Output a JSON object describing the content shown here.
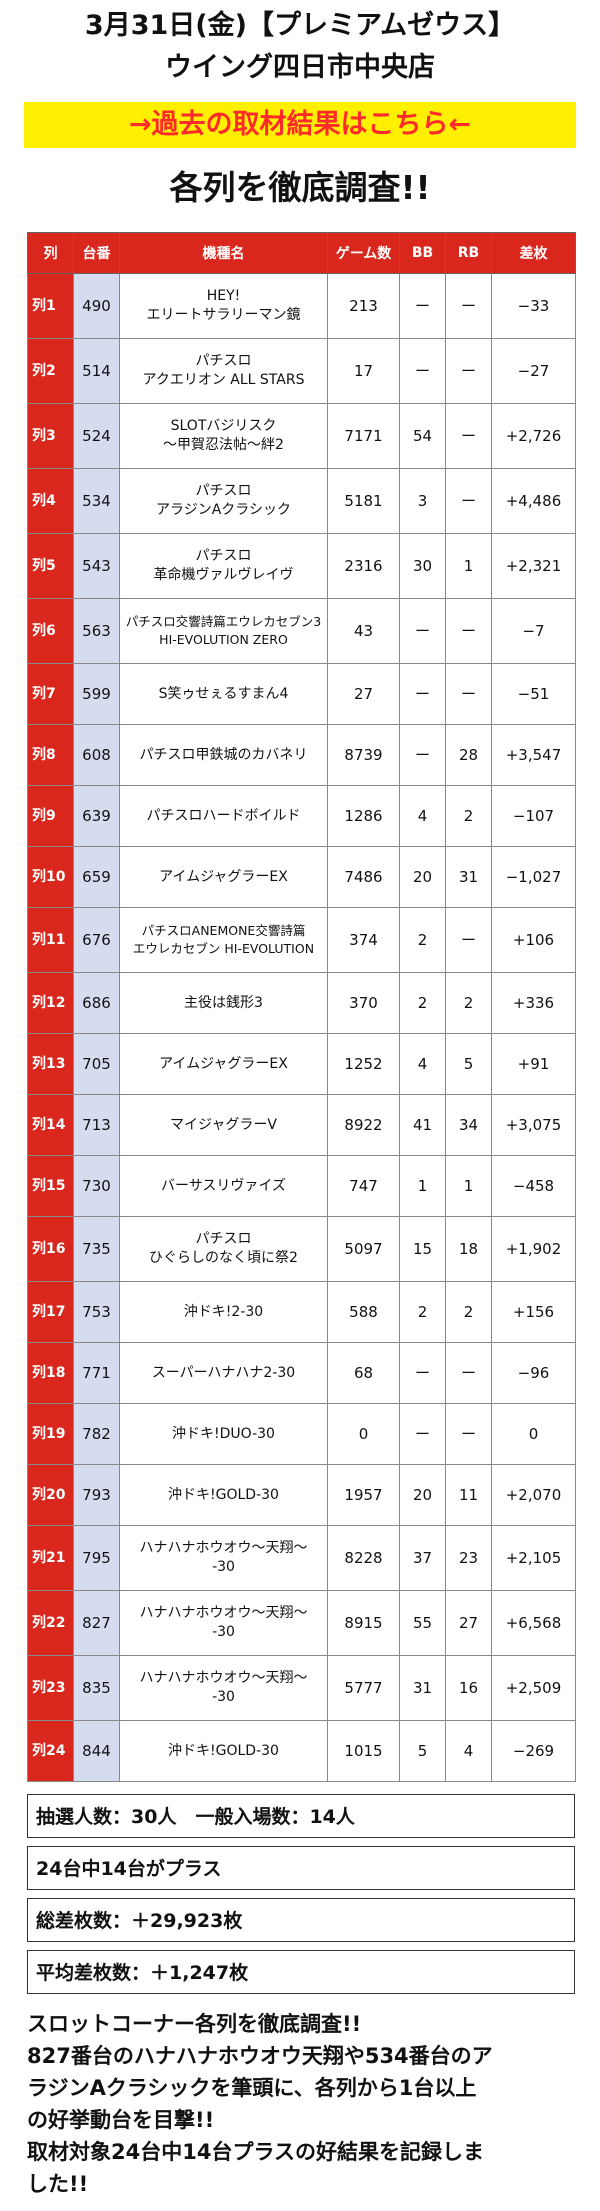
{
  "header": {
    "date_line": "3月31日(金)【プレミアムゼウス】",
    "store": "ウイング四日市中央店",
    "banner_link": "→過去の取材結果はこちら←",
    "heading": "各列を徹底調査!!"
  },
  "table": {
    "headers": [
      "列",
      "台番",
      "機種名",
      "ゲーム数",
      "BB",
      "RB",
      "差枚"
    ],
    "rows": [
      {
        "retsu": "列1",
        "num": "490",
        "name1": "HEY!",
        "name2": "エリートサラリーマン鏡",
        "games": "213",
        "bb": "ー",
        "rb": "ー",
        "diff": "−33"
      },
      {
        "retsu": "列2",
        "num": "514",
        "name1": "パチスロ",
        "name2": "アクエリオン ALL STARS",
        "games": "17",
        "bb": "ー",
        "rb": "ー",
        "diff": "−27"
      },
      {
        "retsu": "列3",
        "num": "524",
        "name1": "SLOTバジリスク",
        "name2": "〜甲賀忍法帖〜絆2",
        "games": "7171",
        "bb": "54",
        "rb": "ー",
        "diff": "+2,726"
      },
      {
        "retsu": "列4",
        "num": "534",
        "name1": "パチスロ",
        "name2": "アラジンAクラシック",
        "games": "5181",
        "bb": "3",
        "rb": "ー",
        "diff": "+4,486"
      },
      {
        "retsu": "列5",
        "num": "543",
        "name1": "パチスロ",
        "name2": "革命機ヴァルヴレイヴ",
        "games": "2316",
        "bb": "30",
        "rb": "1",
        "diff": "+2,321"
      },
      {
        "retsu": "列6",
        "num": "563",
        "name1": "パチスロ交響詩篇エウレカセブン3",
        "name2": "HI-EVOLUTION ZERO",
        "games": "43",
        "bb": "ー",
        "rb": "ー",
        "diff": "−7"
      },
      {
        "retsu": "列7",
        "num": "599",
        "name1": "S笑ゥせぇるすまん4",
        "name2": "",
        "games": "27",
        "bb": "ー",
        "rb": "ー",
        "diff": "−51"
      },
      {
        "retsu": "列8",
        "num": "608",
        "name1": "パチスロ甲鉄城のカバネリ",
        "name2": "",
        "games": "8739",
        "bb": "ー",
        "rb": "28",
        "diff": "+3,547"
      },
      {
        "retsu": "列9",
        "num": "639",
        "name1": "パチスロハードボイルド",
        "name2": "",
        "games": "1286",
        "bb": "4",
        "rb": "2",
        "diff": "−107"
      },
      {
        "retsu": "列10",
        "num": "659",
        "name1": "アイムジャグラーEX",
        "name2": "",
        "games": "7486",
        "bb": "20",
        "rb": "31",
        "diff": "−1,027"
      },
      {
        "retsu": "列11",
        "num": "676",
        "name1": "パチスロANEMONE交響詩篇",
        "name2": "エウレカセブン HI-EVOLUTION",
        "games": "374",
        "bb": "2",
        "rb": "ー",
        "diff": "+106"
      },
      {
        "retsu": "列12",
        "num": "686",
        "name1": "主役は銭形3",
        "name2": "",
        "games": "370",
        "bb": "2",
        "rb": "2",
        "diff": "+336"
      },
      {
        "retsu": "列13",
        "num": "705",
        "name1": "アイムジャグラーEX",
        "name2": "",
        "games": "1252",
        "bb": "4",
        "rb": "5",
        "diff": "+91"
      },
      {
        "retsu": "列14",
        "num": "713",
        "name1": "マイジャグラーV",
        "name2": "",
        "games": "8922",
        "bb": "41",
        "rb": "34",
        "diff": "+3,075"
      },
      {
        "retsu": "列15",
        "num": "730",
        "name1": "バーサスリヴァイズ",
        "name2": "",
        "games": "747",
        "bb": "1",
        "rb": "1",
        "diff": "−458"
      },
      {
        "retsu": "列16",
        "num": "735",
        "name1": "パチスロ",
        "name2": "ひぐらしのなく頃に祭2",
        "games": "5097",
        "bb": "15",
        "rb": "18",
        "diff": "+1,902"
      },
      {
        "retsu": "列17",
        "num": "753",
        "name1": "沖ドキ!2-30",
        "name2": "",
        "games": "588",
        "bb": "2",
        "rb": "2",
        "diff": "+156"
      },
      {
        "retsu": "列18",
        "num": "771",
        "name1": "スーパーハナハナ2-30",
        "name2": "",
        "games": "68",
        "bb": "ー",
        "rb": "ー",
        "diff": "−96"
      },
      {
        "retsu": "列19",
        "num": "782",
        "name1": "沖ドキ!DUO-30",
        "name2": "",
        "games": "0",
        "bb": "ー",
        "rb": "ー",
        "diff": "0"
      },
      {
        "retsu": "列20",
        "num": "793",
        "name1": "沖ドキ!GOLD-30",
        "name2": "",
        "games": "1957",
        "bb": "20",
        "rb": "11",
        "diff": "+2,070"
      },
      {
        "retsu": "列21",
        "num": "795",
        "name1": "ハナハナホウオウ〜天翔〜",
        "name2": "-30",
        "games": "8228",
        "bb": "37",
        "rb": "23",
        "diff": "+2,105"
      },
      {
        "retsu": "列22",
        "num": "827",
        "name1": "ハナハナホウオウ〜天翔〜",
        "name2": "-30",
        "games": "8915",
        "bb": "55",
        "rb": "27",
        "diff": "+6,568"
      },
      {
        "retsu": "列23",
        "num": "835",
        "name1": "ハナハナホウオウ〜天翔〜",
        "name2": "-30",
        "games": "5777",
        "bb": "31",
        "rb": "16",
        "diff": "+2,509"
      },
      {
        "retsu": "列24",
        "num": "844",
        "name1": "沖ドキ!GOLD-30",
        "name2": "",
        "games": "1015",
        "bb": "5",
        "rb": "4",
        "diff": "−269"
      }
    ]
  },
  "summary": {
    "line1": "抽選人数：30人　一般入場数：14人",
    "line2": "24台中14台がプラス",
    "line3": "総差枚数：＋29,923枚",
    "line4": "平均差枚数：＋1,247枚"
  },
  "body_text": {
    "l1": "スロットコーナー各列を徹底調査!!",
    "l2": "827番台のハナハナホウオウ天翔や534番台のア",
    "l3": "ラジンAクラシックを筆頭に、各列から1台以上",
    "l4": "の好挙動台を目撃!!",
    "l5": "取材対象24台中14台プラスの好結果を記録しま",
    "l6": "した!!"
  },
  "colors": {
    "header_red": "#d9271e",
    "number_col": "#d6dcf0",
    "banner_bg": "#ffef00",
    "banner_text": "#ff2a2a"
  }
}
